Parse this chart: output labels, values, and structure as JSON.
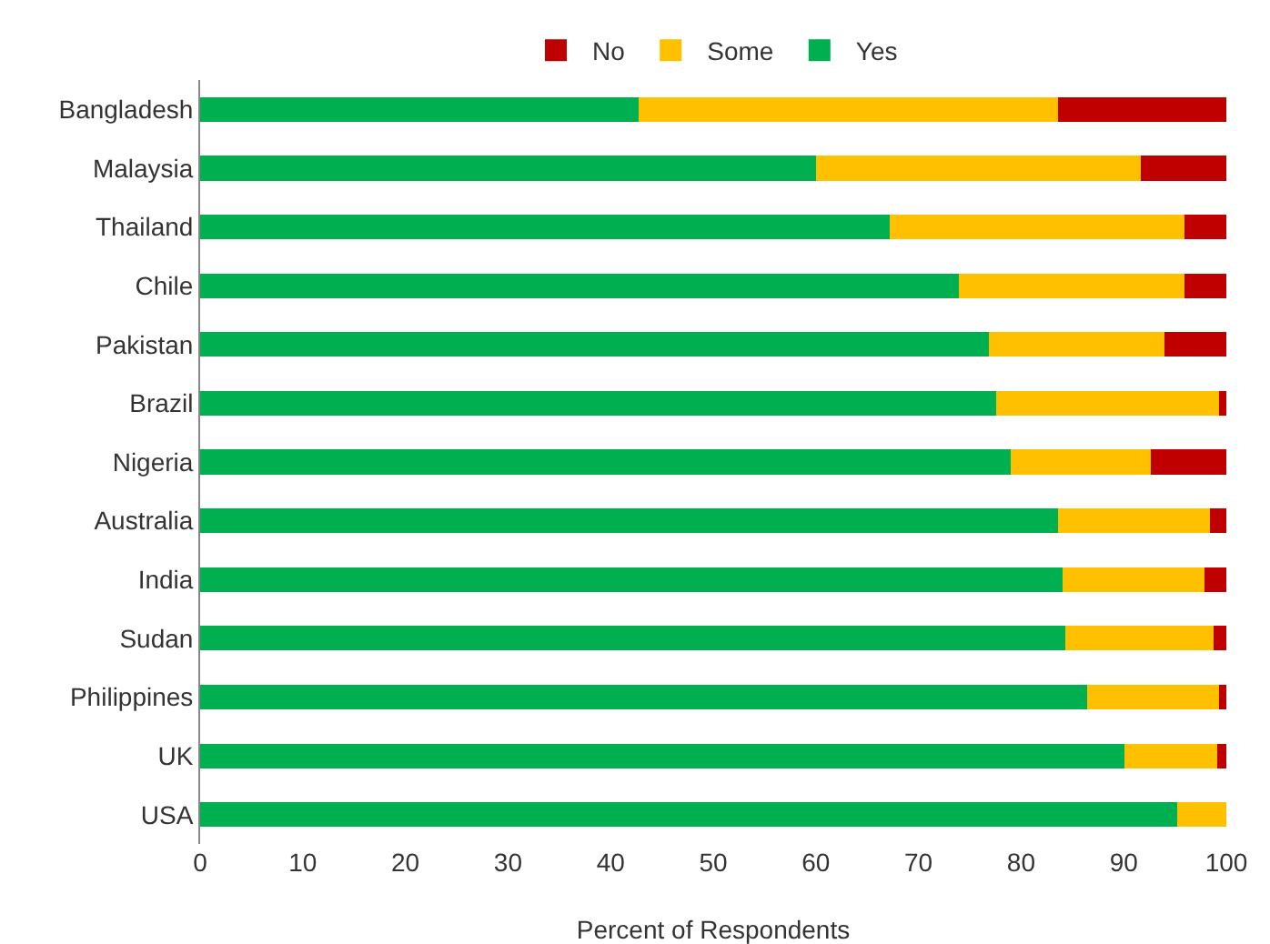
{
  "chart_data": {
    "type": "bar",
    "orientation": "horizontal",
    "stacked": true,
    "xlabel": "Percent of Respondents",
    "categories": [
      "Bangladesh",
      "Malaysia",
      "Thailand",
      "Chile",
      "Pakistan",
      "Brazil",
      "Nigeria",
      "Australia",
      "India",
      "Sudan",
      "Philippines",
      "UK",
      "USA"
    ],
    "series": [
      {
        "name": "Yes",
        "color": "#00b050",
        "values": [
          42.7,
          60.0,
          67.2,
          73.9,
          76.9,
          77.6,
          79.0,
          83.6,
          84.0,
          84.3,
          86.4,
          90.1,
          95.2
        ]
      },
      {
        "name": "Some",
        "color": "#ffc000",
        "values": [
          40.9,
          31.7,
          28.7,
          22.0,
          17.1,
          21.7,
          13.6,
          14.8,
          13.9,
          14.5,
          12.9,
          9.0,
          4.8
        ]
      },
      {
        "name": "No",
        "color": "#c00000",
        "values": [
          16.4,
          8.3,
          4.1,
          4.1,
          6.0,
          0.7,
          7.4,
          1.6,
          2.1,
          1.2,
          0.7,
          0.9,
          0
        ]
      }
    ],
    "xlim": [
      0,
      100
    ],
    "xticks": [
      0,
      10,
      20,
      30,
      40,
      50,
      60,
      70,
      80,
      90,
      100
    ],
    "grid": false,
    "legend": "top"
  }
}
